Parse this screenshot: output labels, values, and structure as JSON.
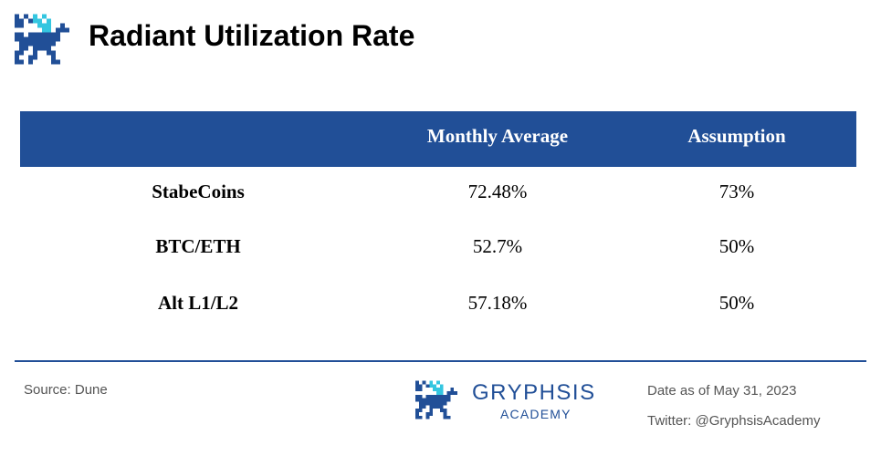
{
  "header": {
    "title": "Radiant Utilization Rate"
  },
  "table": {
    "columns": [
      "",
      "Monthly Average",
      "Assumption"
    ],
    "rows": [
      {
        "label": "StabeCoins",
        "monthly_average": "72.48%",
        "assumption": "73%"
      },
      {
        "label": "BTC/ETH",
        "monthly_average": "52.7%",
        "assumption": "50%"
      },
      {
        "label": "Alt L1/L2",
        "monthly_average": "57.18%",
        "assumption": "50%"
      }
    ]
  },
  "footer": {
    "source": "Source: Dune",
    "brand_name": "GRYPHSIS",
    "brand_sub": "ACADEMY",
    "date": "Date as of May 31, 2023",
    "twitter": "Twitter: @GryphsisAcademy"
  },
  "colors": {
    "brand_blue": "#214f97",
    "accent_cyan": "#34c6e0",
    "text_gray": "#555555"
  },
  "icons": {
    "logo": "gryphon-logo-icon"
  }
}
